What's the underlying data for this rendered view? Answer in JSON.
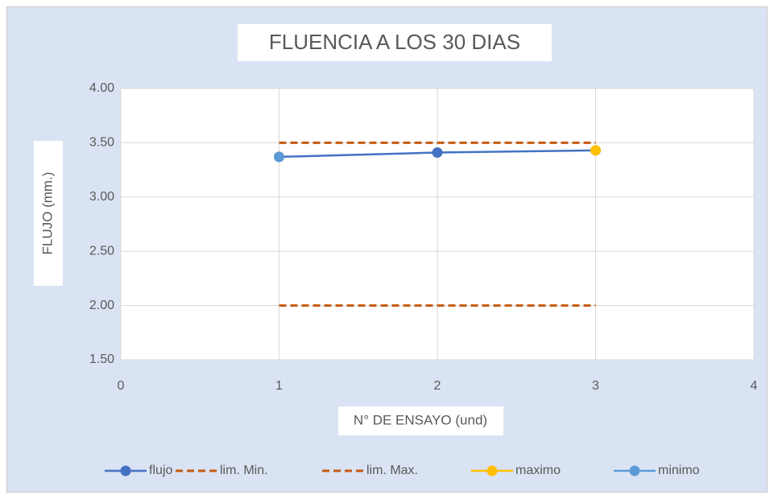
{
  "chart_data": {
    "type": "line",
    "title": "FLUENCIA A LOS 30 DIAS",
    "x_label": "N° DE ENSAYO (und)",
    "y_label": "FLUJO (mm.)",
    "x": [
      1,
      2,
      3
    ],
    "xlim": [
      0,
      4
    ],
    "xticks": [
      0,
      1,
      2,
      3,
      4
    ],
    "ylim": [
      1.5,
      4
    ],
    "yticks": [
      {
        "value": 1.5,
        "label": "1.50"
      },
      {
        "value": 2,
        "label": "2.00"
      },
      {
        "value": 2.5,
        "label": "2.50"
      },
      {
        "value": 3,
        "label": "3.00"
      },
      {
        "value": 3.5,
        "label": "3.50"
      },
      {
        "value": 4,
        "label": "4.00"
      }
    ],
    "grid": true,
    "legend": "bottom",
    "series": [
      {
        "name": "flujo",
        "color": "#4472c4",
        "values": [
          3.37,
          3.41,
          3.43
        ],
        "marker": true,
        "dashed": false
      },
      {
        "name": "lim. Min.",
        "color": "#c55a11",
        "values": [
          2,
          2,
          2
        ],
        "marker": false,
        "dashed": true
      },
      {
        "name": "lim. Max.",
        "color": "#c55a11",
        "values": [
          3.5,
          3.5,
          3.5
        ],
        "marker": false,
        "dashed": true
      },
      {
        "name": "maximo",
        "color": "#ffc000",
        "values": [
          null,
          null,
          3.43
        ],
        "marker": true,
        "dashed": false
      },
      {
        "name": "minimo",
        "color": "#5b9bd5",
        "values": [
          3.37,
          null,
          null
        ],
        "marker": true,
        "dashed": false
      }
    ]
  }
}
